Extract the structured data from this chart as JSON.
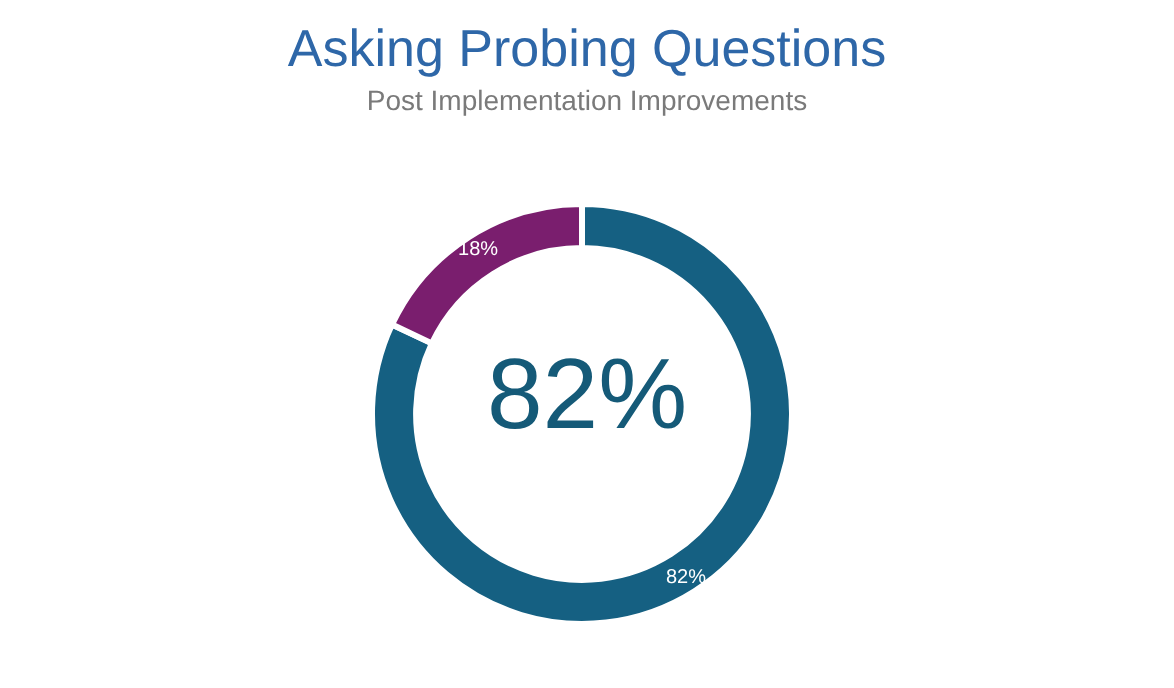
{
  "chart_data": {
    "type": "donut",
    "title": "Asking Probing Questions",
    "subtitle": "Post Implementation Improvements",
    "categories": [
      null,
      null
    ],
    "values": [
      82,
      18
    ],
    "colors": [
      "#156082",
      "#7a1e6e"
    ],
    "value_labels": [
      "82%",
      "18%"
    ],
    "annotations": [
      "82%"
    ]
  }
}
